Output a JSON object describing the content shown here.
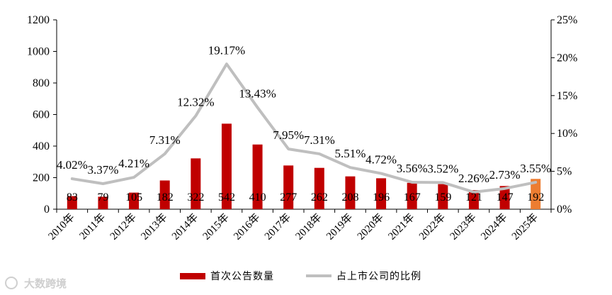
{
  "chart_data": {
    "type": "bar",
    "categories": [
      "2010年",
      "2011年",
      "2012年",
      "2013年",
      "2014年",
      "2015年",
      "2016年",
      "2017年",
      "2018年",
      "2019年",
      "2020年",
      "2021年",
      "2022年",
      "2023年",
      "2024年",
      "2025年"
    ],
    "series": [
      {
        "name": "首次公告数量",
        "type": "bar",
        "axis": "left",
        "values": [
          83,
          79,
          105,
          182,
          322,
          542,
          410,
          277,
          262,
          208,
          196,
          167,
          159,
          121,
          147,
          192
        ],
        "labels": [
          "83",
          "79",
          "105",
          "182",
          "322",
          "542",
          "410",
          "277",
          "262",
          "208",
          "196",
          "167",
          "159",
          "121",
          "147",
          "192"
        ],
        "color": "#C00000",
        "highlight_last_color": "#ED7D31"
      },
      {
        "name": "占上市公司的比例",
        "type": "line",
        "axis": "right",
        "values": [
          4.02,
          3.37,
          4.21,
          7.31,
          12.32,
          19.17,
          13.43,
          7.95,
          7.31,
          5.51,
          4.72,
          3.56,
          3.52,
          2.26,
          2.73,
          3.55
        ],
        "labels": [
          "4.02%",
          "3.37%",
          "4.21%",
          "7.31%",
          "12.32%",
          "19.17%",
          "13.43%",
          "7.95%",
          "7.31%",
          "5.51%",
          "4.72%",
          "3.56%",
          "3.52%",
          "2.26%",
          "2.73%",
          "3.55%"
        ],
        "color": "#BFBFBF"
      }
    ],
    "y_left": {
      "range": [
        0,
        1200
      ],
      "ticks": [
        0,
        200,
        400,
        600,
        800,
        1000,
        1200
      ],
      "tick_labels": [
        "0",
        "200",
        "400",
        "600",
        "800",
        "1000",
        "1200"
      ]
    },
    "y_right": {
      "range": [
        0,
        25
      ],
      "ticks": [
        0,
        5,
        10,
        15,
        20,
        25
      ],
      "tick_labels": [
        "0%",
        "5%",
        "10%",
        "15%",
        "20%",
        "25%"
      ]
    },
    "grid": false,
    "legend_position": "bottom-center"
  },
  "watermark": "大数跨境"
}
